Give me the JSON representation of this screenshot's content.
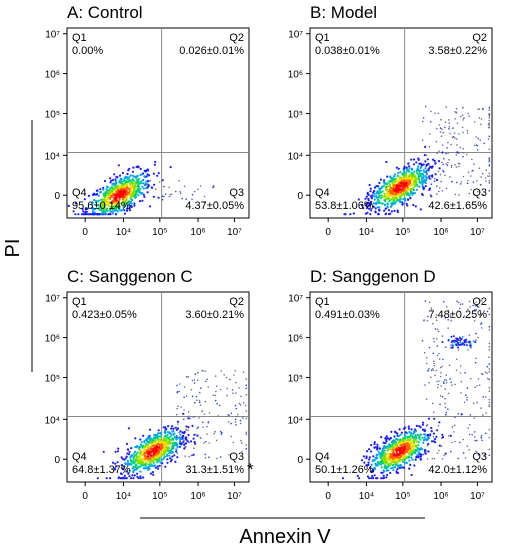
{
  "chart_data": [
    {
      "type": "scatter",
      "title": "A: Control",
      "x_axis": {
        "scale": "biexponential",
        "ticks": [
          "0",
          "10⁴",
          "10⁵",
          "10⁶",
          "10⁷"
        ]
      },
      "y_axis": {
        "scale": "biexponential",
        "ticks": [
          "0",
          "10⁴",
          "10⁵",
          "10⁶",
          "10⁷"
        ]
      },
      "quadrants": {
        "Q1": {
          "label": "Q1",
          "value": "0.00%"
        },
        "Q2": {
          "label": "Q2",
          "value": "0.026±0.01%"
        },
        "Q3": {
          "label": "Q3",
          "value": "4.37±0.05%"
        },
        "Q4": {
          "label": "Q4",
          "value": "95.6±0.14%"
        }
      },
      "quadrant_percent": {
        "Q1": 0.0,
        "Q2": 0.026,
        "Q3": 4.37,
        "Q4": 95.6
      },
      "population_center": {
        "annexin_log10": 3.9,
        "pi_log10": 3.0
      }
    },
    {
      "type": "scatter",
      "title": "B: Model",
      "x_axis": {
        "scale": "biexponential",
        "ticks": [
          "0",
          "10⁴",
          "10⁵",
          "10⁶",
          "10⁷"
        ]
      },
      "y_axis": {
        "scale": "biexponential",
        "ticks": [
          "0",
          "10⁴",
          "10⁵",
          "10⁶",
          "10⁷"
        ]
      },
      "quadrants": {
        "Q1": {
          "label": "Q1",
          "value": "0.038±0.01%"
        },
        "Q2": {
          "label": "Q2",
          "value": "3.58±0.22%"
        },
        "Q3": {
          "label": "Q3",
          "value": "42.6±1.65%"
        },
        "Q4": {
          "label": "Q4",
          "value": "53.8±1.06%"
        }
      },
      "quadrant_percent": {
        "Q1": 0.038,
        "Q2": 3.58,
        "Q3": 42.6,
        "Q4": 53.8
      },
      "population_center": {
        "annexin_log10": 4.9,
        "pi_log10": 3.2
      }
    },
    {
      "type": "scatter",
      "title": "C: Sanggenon C",
      "x_axis": {
        "scale": "biexponential",
        "ticks": [
          "0",
          "10⁴",
          "10⁵",
          "10⁶",
          "10⁷"
        ]
      },
      "y_axis": {
        "scale": "biexponential",
        "ticks": [
          "0",
          "10⁴",
          "10⁵",
          "10⁶",
          "10⁷"
        ]
      },
      "quadrants": {
        "Q1": {
          "label": "Q1",
          "value": "0.423±0.05%"
        },
        "Q2": {
          "label": "Q2",
          "value": "3.60±0.21%"
        },
        "Q3": {
          "label": "Q3",
          "value": "31.3±1.51%"
        },
        "Q4": {
          "label": "Q4",
          "value": "64.8±1.37%"
        }
      },
      "quadrant_percent": {
        "Q1": 0.423,
        "Q2": 3.6,
        "Q3": 31.3,
        "Q4": 64.8
      },
      "population_center": {
        "annexin_log10": 4.8,
        "pi_log10": 3.2
      },
      "annotation": "*"
    },
    {
      "type": "scatter",
      "title": "D: Sanggenon D",
      "x_axis": {
        "scale": "biexponential",
        "ticks": [
          "0",
          "10⁴",
          "10⁵",
          "10⁶",
          "10⁷"
        ]
      },
      "y_axis": {
        "scale": "biexponential",
        "ticks": [
          "0",
          "10⁴",
          "10⁵",
          "10⁶",
          "10⁷"
        ]
      },
      "quadrants": {
        "Q1": {
          "label": "Q1",
          "value": "0.491±0.03%"
        },
        "Q2": {
          "label": "Q2",
          "value": "7.48±0.25%"
        },
        "Q3": {
          "label": "Q3",
          "value": "42.0±1.12%"
        },
        "Q4": {
          "label": "Q4",
          "value": "50.1±1.26%"
        }
      },
      "quadrant_percent": {
        "Q1": 0.491,
        "Q2": 7.48,
        "Q3": 42.0,
        "Q4": 50.1
      },
      "population_center": {
        "annexin_log10": 4.9,
        "pi_log10": 3.2
      }
    }
  ],
  "shared_xlabel": "Annexin V",
  "shared_ylabel": "PI"
}
